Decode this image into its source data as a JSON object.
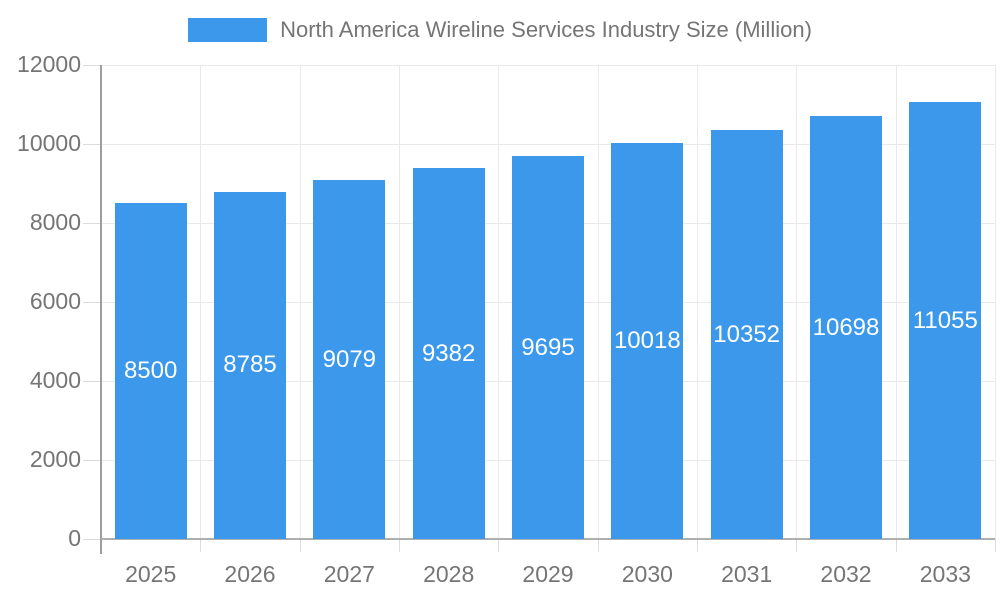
{
  "chart_data": {
    "type": "bar",
    "title": "North America Wireline Services Industry Size (Million)",
    "legend": {
      "position": "top",
      "entries": [
        {
          "label": "North America Wireline Services Industry Size (Million)",
          "color": "#3B98EB"
        }
      ]
    },
    "categories": [
      "2025",
      "2026",
      "2027",
      "2028",
      "2029",
      "2030",
      "2031",
      "2032",
      "2033"
    ],
    "values": [
      8500,
      8785,
      9079,
      9382,
      9695,
      10018,
      10352,
      10698,
      11055
    ],
    "bar_value_labels": [
      "8500",
      "8785",
      "9079",
      "9382",
      "9695",
      "10018",
      "10352",
      "10698",
      "11055"
    ],
    "xlabel": "",
    "ylabel": "",
    "ylim": [
      0,
      12000
    ],
    "ytick_step": 2000,
    "ytick_labels": [
      "0",
      "2000",
      "4000",
      "6000",
      "8000",
      "10000",
      "12000"
    ],
    "grid": true,
    "colors": {
      "bar": "#3B98EB",
      "text": "#757575",
      "value_label_text": "#FFFFFF",
      "gridline": "#E9E9E9",
      "tick": "#DCDCDC",
      "y_axis_line": "#9E9E9E",
      "x_axis_line": "#AFAFAF",
      "background": "#FFFFFF"
    }
  }
}
